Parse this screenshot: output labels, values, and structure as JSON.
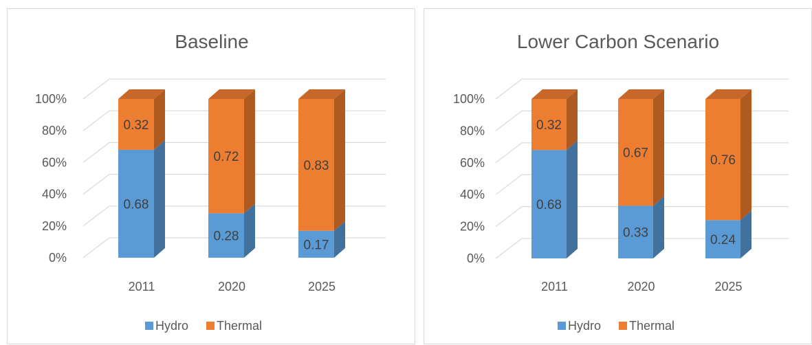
{
  "colors": {
    "hydro_front": "#5b9bd5",
    "hydro_side": "#41719c",
    "hydro_top": "#4f8bc2",
    "thermal_front": "#ed7d31",
    "thermal_side": "#ae5a21",
    "thermal_top": "#c8672a",
    "grid": "#d9d9d9",
    "text": "#595959"
  },
  "chart_data": [
    {
      "type": "bar",
      "stacked": "100%",
      "title": "Baseline",
      "categories": [
        "2011",
        "2020",
        "2025"
      ],
      "series": [
        {
          "name": "Hydro",
          "values": [
            0.68,
            0.28,
            0.17
          ]
        },
        {
          "name": "Thermal",
          "values": [
            0.32,
            0.72,
            0.83
          ]
        }
      ],
      "y_ticks": [
        "0%",
        "20%",
        "40%",
        "60%",
        "80%",
        "100%"
      ],
      "ylim": [
        0,
        1
      ],
      "grid": true,
      "legend": "bottom"
    },
    {
      "type": "bar",
      "stacked": "100%",
      "title": "Lower Carbon Scenario",
      "categories": [
        "2011",
        "2020",
        "2025"
      ],
      "series": [
        {
          "name": "Hydro",
          "values": [
            0.68,
            0.33,
            0.24
          ]
        },
        {
          "name": "Thermal",
          "values": [
            0.32,
            0.67,
            0.76
          ]
        }
      ],
      "y_ticks": [
        "0%",
        "20%",
        "40%",
        "60%",
        "80%",
        "100%"
      ],
      "ylim": [
        0,
        1
      ],
      "grid": true,
      "legend": "bottom"
    }
  ]
}
